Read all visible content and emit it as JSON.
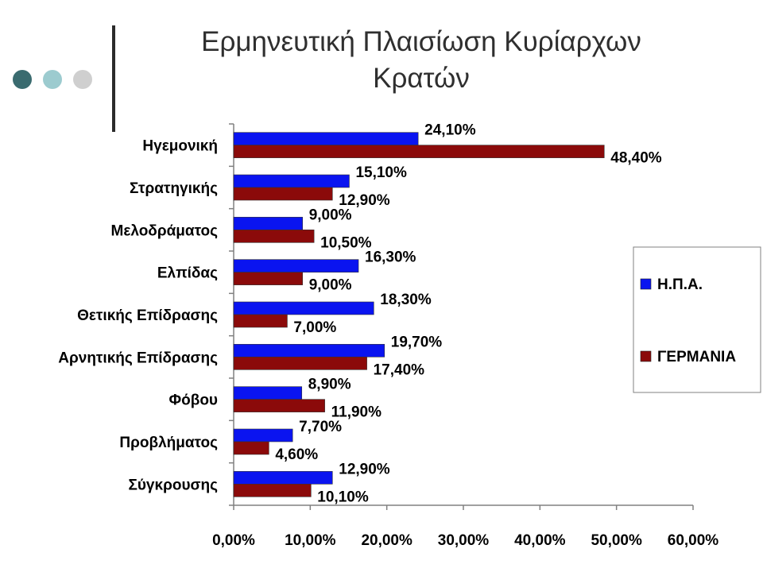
{
  "slide": {
    "title_line1": "Ερμηνευτική Πλαισίωση Κυρίαρχων",
    "title_line2": "Κρατών",
    "dot_colors": [
      "#3a6b6f",
      "#9ccbcf",
      "#cfcfcf"
    ]
  },
  "chart_data": {
    "type": "bar",
    "orientation": "horizontal",
    "title": "",
    "xlabel": "",
    "ylabel": "",
    "categories": [
      "Ηγεμονική",
      "Στρατηγικής",
      "Μελοδράματος",
      "Ελπίδας",
      "Θετικής Επίδρασης",
      "Αρνητικής Επίδρασης",
      "Φόβου",
      "Προβλήματος",
      "Σύγκρουσης"
    ],
    "series": [
      {
        "name": "Η.Π.Α.",
        "color": "#0a14f0",
        "values": [
          24.1,
          15.1,
          9.0,
          16.3,
          18.3,
          19.7,
          8.9,
          7.7,
          12.9
        ],
        "labels": [
          "24,10%",
          "15,10%",
          "9,00%",
          "16,30%",
          "18,30%",
          "19,70%",
          "8,90%",
          "7,70%",
          "12,90%"
        ]
      },
      {
        "name": "ΓΕΡΜΑΝΙΑ",
        "color": "#8b0a0a",
        "values": [
          48.4,
          12.9,
          10.5,
          9.0,
          7.0,
          17.4,
          11.9,
          4.6,
          10.1
        ],
        "labels": [
          "48,40%",
          "12,90%",
          "10,50%",
          "9,00%",
          "7,00%",
          "17,40%",
          "11,90%",
          "4,60%",
          "10,10%"
        ]
      }
    ],
    "xlim": [
      0,
      60
    ],
    "xticks": [
      0,
      10,
      20,
      30,
      40,
      50,
      60
    ],
    "xtick_labels": [
      "0,00%",
      "10,00%",
      "20,00%",
      "30,00%",
      "40,00%",
      "50,00%",
      "60,00%"
    ],
    "grid": false,
    "legend_position": "right"
  }
}
